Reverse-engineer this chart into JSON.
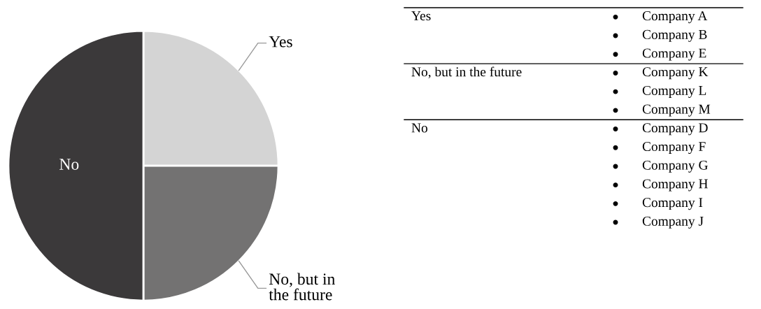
{
  "chart_data": [
    {
      "type": "pie",
      "categories": [
        "Yes",
        "No, but in\nthe future",
        "No"
      ],
      "values": [
        25,
        25,
        50
      ],
      "colors": [
        "#d4d4d4",
        "#737272",
        "#3b393a"
      ]
    },
    {
      "type": "other",
      "y_categories": [
        "Yes",
        "No, but in the future",
        "No"
      ],
      "cell_labels": [
        [
          "Company A",
          "Company B",
          "Company E"
        ],
        [
          "Company K",
          "Company L",
          "Company M"
        ],
        [
          "Company D",
          "Company F",
          "Company G",
          "Company H",
          "Company I",
          "Company J"
        ]
      ]
    }
  ]
}
